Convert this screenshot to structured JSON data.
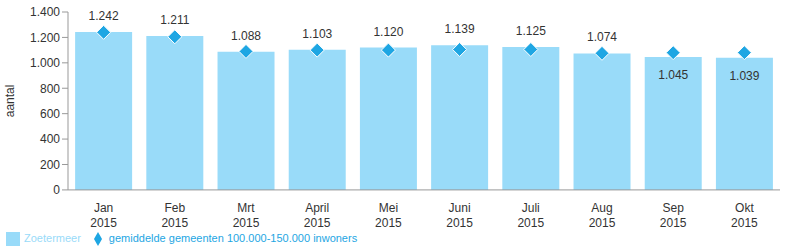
{
  "chart_data": {
    "type": "bar",
    "ylabel": "aantal",
    "categories": [
      "Jan 2015",
      "Feb 2015",
      "Mrt 2015",
      "April 2015",
      "Mei 2015",
      "Juni 2015",
      "Juli 2015",
      "Aug 2015",
      "Sep 2015",
      "Okt 2015"
    ],
    "series": [
      {
        "name": "Zoetermeer",
        "type": "bar",
        "color": "#99dbf9",
        "values": [
          1242,
          1211,
          1088,
          1103,
          1120,
          1139,
          1125,
          1074,
          1045,
          1039
        ],
        "value_labels": [
          "1.242",
          "1.211",
          "1.088",
          "1.103",
          "1.120",
          "1.139",
          "1.125",
          "1.074",
          "1.045",
          "1.039"
        ],
        "data_labels": true
      },
      {
        "name": "gemiddelde gemeenten 100.000-150.000 inwoners",
        "type": "scatter",
        "marker": "diamond",
        "color": "#1ea6e3",
        "values": [
          1240,
          1205,
          1090,
          1100,
          1100,
          1105,
          1105,
          1075,
          1080,
          1080
        ]
      }
    ],
    "ylim": [
      0,
      1400
    ],
    "yticks": [
      0,
      200,
      400,
      600,
      800,
      {
        "value": 1000,
        "label": "1.000"
      },
      {
        "value": 1200,
        "label": "1.200"
      },
      {
        "value": 1400,
        "label": "1.400"
      }
    ],
    "grid": false,
    "legend": "bottom left"
  }
}
